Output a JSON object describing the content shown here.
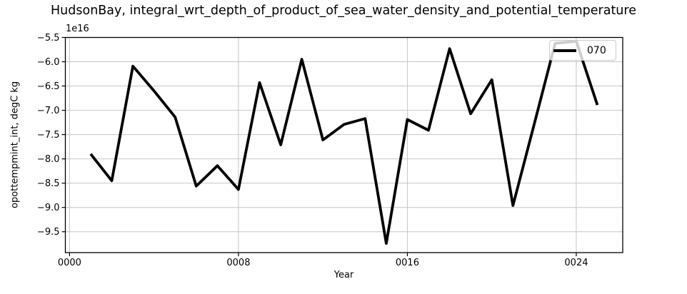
{
  "figure": {
    "title": "HudsonBay, integral_wrt_depth_of_product_of_sea_water_density_and_potential_temperature",
    "background": "#ffffff"
  },
  "chart_data": {
    "type": "line",
    "title": "HudsonBay, integral_wrt_depth_of_product_of_sea_water_density_and_potential_temperature",
    "xlabel": "Year",
    "ylabel": "opottempmint_int, degC kg",
    "y_offset_text": "1e16",
    "grid": true,
    "legend_position": "upper right",
    "xlim": [
      -0.2,
      26.2
    ],
    "ylim_e16": [
      -9.93,
      -5.5
    ],
    "x": [
      1,
      2,
      3,
      4,
      5,
      6,
      7,
      8,
      9,
      10,
      11,
      12,
      13,
      14,
      15,
      16,
      17,
      18,
      19,
      20,
      21,
      22,
      23,
      24,
      25
    ],
    "series": [
      {
        "name": "070",
        "color": "#000000",
        "values_e16": [
          -7.9,
          -8.45,
          -6.09,
          -6.6,
          -7.14,
          -8.56,
          -8.14,
          -8.63,
          -6.43,
          -7.71,
          -5.95,
          -7.61,
          -7.29,
          -7.17,
          -9.74,
          -7.19,
          -7.41,
          -5.73,
          -7.07,
          -6.37,
          -8.96,
          -7.3,
          -5.62,
          -5.58,
          -6.89
        ]
      }
    ],
    "xticks": {
      "positions": [
        0,
        8,
        16,
        24
      ],
      "labels": [
        "0000",
        "0008",
        "0016",
        "0024"
      ]
    },
    "yticks": {
      "positions": [
        -5.5,
        -6.0,
        -6.5,
        -7.0,
        -7.5,
        -8.0,
        -8.5,
        -9.0,
        -9.5
      ],
      "labels": [
        "−5.5",
        "−6.0",
        "−6.5",
        "−7.0",
        "−7.5",
        "−8.0",
        "−8.5",
        "−9.0",
        "−9.5"
      ]
    }
  },
  "legend": {
    "entries": [
      {
        "label": "070",
        "color": "#000000"
      }
    ]
  },
  "colors": {
    "line": "#000000",
    "grid": "#c6c6c6",
    "spine": "#000000",
    "tick": "#000000",
    "legend_border": "#cbcbcb"
  }
}
